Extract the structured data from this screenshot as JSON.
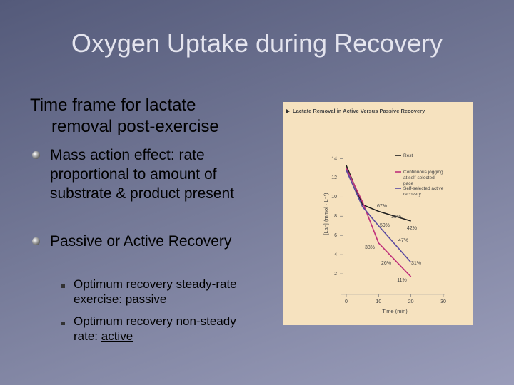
{
  "title": "Oxygen Uptake during Recovery",
  "body": {
    "heading": "Time frame for lactate removal post-exercise",
    "bullets": [
      {
        "text": "Mass action effect: rate proportional to amount of substrate & product present"
      },
      {
        "text": "Passive or Active Recovery",
        "subbullets": [
          {
            "text": "Optimum recovery steady-rate exercise: ",
            "emphasis": "passive"
          },
          {
            "text": "Optimum recovery non-steady rate: ",
            "emphasis": "active"
          }
        ]
      }
    ]
  },
  "chart_data": {
    "type": "line",
    "title": "Lactate Removal in Active Versus Passive Recovery",
    "x_label": "Time (min)",
    "y_label": "[La⁻] (mmol · L⁻¹)",
    "x": [
      0,
      5,
      10,
      20
    ],
    "xlim": [
      0,
      30
    ],
    "xticks": [
      0,
      10,
      20,
      30
    ],
    "ylim": [
      0,
      15
    ],
    "yticks": [
      2,
      4,
      6,
      8,
      10,
      12,
      14
    ],
    "series": [
      {
        "name": "Rest",
        "color": "#1e1e1e",
        "values": [
          13.3,
          9.2,
          8.5,
          7.5
        ]
      },
      {
        "name": "Continuous jogging at self-selected pace",
        "color": "#c0307a",
        "values": [
          13.0,
          9.5,
          5.2,
          1.7
        ]
      },
      {
        "name": "Self-selected active recovery",
        "color": "#5a4aa0",
        "values": [
          12.8,
          9.0,
          7.0,
          3.2
        ]
      }
    ],
    "annotations": [
      "67%",
      "38%",
      "42%",
      "59%",
      "47%",
      "38%",
      "26%",
      "31%",
      "11%"
    ]
  }
}
